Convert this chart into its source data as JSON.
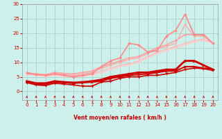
{
  "background_color": "#cef0ea",
  "grid_color": "#aad8d0",
  "text_color": "#cc0000",
  "xlabel": "Vent moyen/en rafales ( km/h )",
  "xlim": [
    -0.5,
    20.5
  ],
  "ylim": [
    -3,
    30
  ],
  "xticks": [
    0,
    1,
    2,
    3,
    4,
    5,
    6,
    7,
    8,
    9,
    10,
    11,
    12,
    13,
    14,
    15,
    16,
    17,
    18,
    19,
    20
  ],
  "yticks": [
    0,
    5,
    10,
    15,
    20,
    25,
    30
  ],
  "light_series": [
    {
      "x": [
        0,
        1,
        2,
        3,
        4,
        5,
        6,
        7,
        8,
        9,
        10,
        11,
        12,
        13,
        14,
        15,
        16,
        17,
        18,
        19,
        20
      ],
      "y": [
        6.5,
        6.0,
        5.8,
        6.5,
        6.2,
        6.0,
        6.5,
        7.0,
        8.5,
        9.5,
        10.5,
        11.5,
        12.0,
        13.5,
        15.0,
        16.0,
        17.5,
        19.5,
        19.5,
        19.5,
        16.5
      ],
      "color": "#ff9999",
      "lw": 1.0,
      "marker": "D",
      "ms": 1.5
    },
    {
      "x": [
        0,
        1,
        2,
        3,
        4,
        5,
        6,
        7,
        8,
        9,
        10,
        11,
        12,
        13,
        14,
        15,
        16,
        17,
        18,
        19,
        20
      ],
      "y": [
        6.2,
        5.8,
        5.5,
        6.2,
        5.8,
        5.5,
        6.0,
        6.5,
        8.0,
        9.0,
        10.0,
        11.0,
        11.5,
        13.0,
        14.5,
        15.5,
        16.5,
        23.0,
        19.0,
        19.0,
        16.5
      ],
      "color": "#ffaaaa",
      "lw": 1.0,
      "marker": "D",
      "ms": 1.5
    },
    {
      "x": [
        0,
        1,
        2,
        3,
        4,
        5,
        6,
        7,
        8,
        9,
        10,
        11,
        12,
        13,
        14,
        15,
        16,
        17,
        18,
        19,
        20
      ],
      "y": [
        6.0,
        5.6,
        5.3,
        5.8,
        5.5,
        5.2,
        5.5,
        6.0,
        7.0,
        8.0,
        9.0,
        9.5,
        10.5,
        12.0,
        13.5,
        14.5,
        15.5,
        16.5,
        17.5,
        18.0,
        16.5
      ],
      "color": "#ffbbbb",
      "lw": 1.0,
      "marker": "D",
      "ms": 1.5
    },
    {
      "x": [
        0,
        1,
        2,
        3,
        4,
        5,
        6,
        7,
        8,
        9,
        10,
        11,
        12,
        13,
        14,
        15,
        16,
        17,
        18,
        19,
        20
      ],
      "y": [
        5.8,
        5.4,
        5.1,
        5.5,
        5.2,
        5.0,
        5.2,
        5.7,
        6.5,
        7.5,
        8.5,
        9.0,
        10.0,
        11.5,
        13.0,
        14.0,
        15.0,
        16.0,
        17.0,
        17.5,
        16.5
      ],
      "color": "#ffcccc",
      "lw": 1.0,
      "marker": "D",
      "ms": 1.5
    },
    {
      "x": [
        0,
        1,
        2,
        3,
        4,
        5,
        6,
        7,
        8,
        9,
        10,
        11,
        12,
        13,
        14,
        15,
        16,
        17,
        18,
        19,
        20
      ],
      "y": [
        6.3,
        5.8,
        5.5,
        6.0,
        5.5,
        5.0,
        5.5,
        6.0,
        8.5,
        10.5,
        11.5,
        16.5,
        16.0,
        13.5,
        14.0,
        19.0,
        21.0,
        26.5,
        19.5,
        19.5,
        16.5
      ],
      "color": "#ff8888",
      "lw": 1.2,
      "marker": "D",
      "ms": 2.0
    }
  ],
  "dark_series": [
    {
      "x": [
        0,
        1,
        2,
        3,
        4,
        5,
        6,
        7,
        8,
        9,
        10,
        11,
        12,
        13,
        14,
        15,
        16,
        17,
        18,
        19,
        20
      ],
      "y": [
        3.2,
        2.5,
        2.5,
        3.2,
        3.0,
        2.8,
        3.0,
        3.2,
        3.5,
        4.5,
        5.0,
        5.5,
        5.8,
        6.0,
        6.5,
        7.0,
        7.0,
        8.5,
        8.5,
        8.0,
        7.5
      ],
      "color": "#cc0000",
      "lw": 1.5,
      "marker": ">",
      "ms": 2.5
    },
    {
      "x": [
        0,
        1,
        2,
        3,
        4,
        5,
        6,
        7,
        8,
        9,
        10,
        11,
        12,
        13,
        14,
        15,
        16,
        17,
        18,
        19,
        20
      ],
      "y": [
        3.5,
        2.8,
        2.8,
        3.5,
        3.2,
        3.0,
        3.2,
        3.5,
        4.0,
        5.0,
        5.5,
        6.0,
        6.5,
        6.5,
        7.0,
        7.5,
        7.5,
        10.5,
        10.5,
        9.0,
        7.5
      ],
      "color": "#cc0000",
      "lw": 2.0,
      "marker": ">",
      "ms": 2.5
    },
    {
      "x": [
        0,
        1,
        2,
        3,
        4,
        5,
        6,
        7,
        8,
        9,
        10,
        11,
        12,
        13,
        14,
        15,
        16,
        17,
        18,
        19,
        20
      ],
      "y": [
        3.0,
        2.2,
        2.0,
        2.8,
        2.5,
        2.2,
        1.8,
        1.8,
        3.2,
        3.5,
        4.5,
        5.0,
        5.0,
        5.5,
        5.5,
        6.0,
        6.5,
        7.5,
        8.0,
        7.8,
        7.2
      ],
      "color": "#cc0000",
      "lw": 1.2,
      "marker": "v",
      "ms": 2.5
    }
  ],
  "wind_arrows_x": [
    0,
    1,
    2,
    3,
    4,
    5,
    6,
    7,
    8,
    9,
    10,
    11,
    12,
    13,
    14,
    15,
    16,
    17,
    18,
    19,
    20
  ]
}
